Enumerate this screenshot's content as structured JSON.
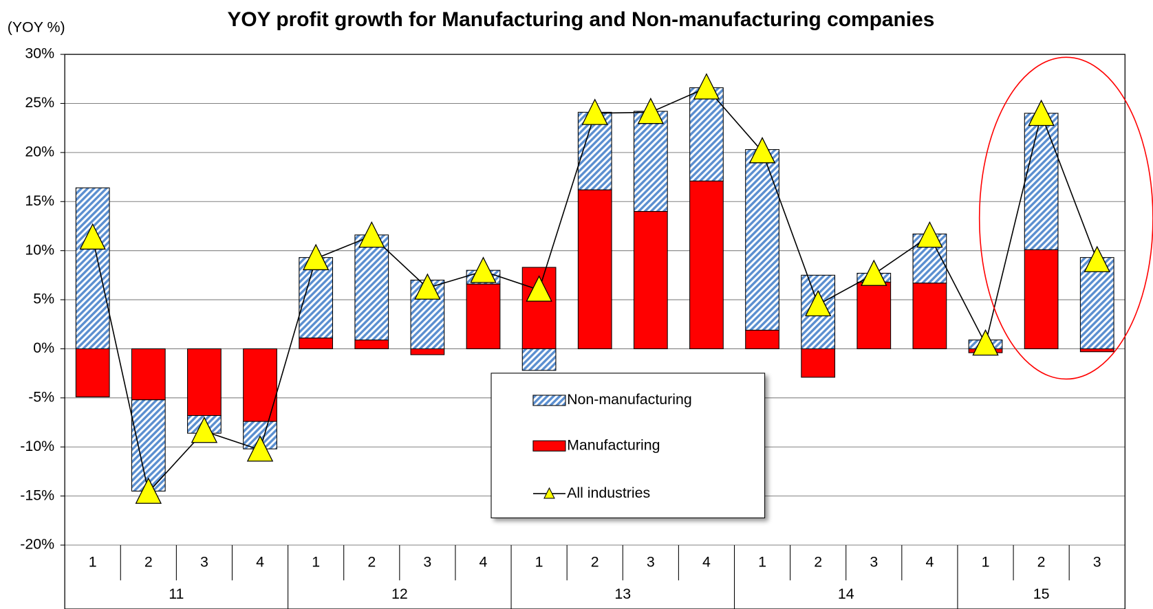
{
  "chart_data": {
    "type": "bar",
    "stacked": true,
    "title": "YOY profit growth for Manufacturing and Non-manufacturing companies",
    "y_label": "(YOY %)",
    "groups": [
      {
        "label": "11",
        "categories": [
          "1",
          "2",
          "3",
          "4"
        ]
      },
      {
        "label": "12",
        "categories": [
          "1",
          "2",
          "3",
          "4"
        ]
      },
      {
        "label": "13",
        "categories": [
          "1",
          "2",
          "3",
          "4"
        ]
      },
      {
        "label": "14",
        "categories": [
          "1",
          "2",
          "3",
          "4"
        ]
      },
      {
        "label": "15",
        "categories": [
          "1",
          "2",
          "3"
        ]
      }
    ],
    "series": [
      {
        "name": "Non-manufacturing",
        "type": "bar",
        "color": "#5b8fd0",
        "pattern": "hatch",
        "values": [
          16.4,
          -9.3,
          -1.8,
          -2.8,
          8.2,
          10.7,
          7.0,
          1.4,
          -2.2,
          7.9,
          10.2,
          9.5,
          18.4,
          7.5,
          0.9,
          5.0,
          0.9,
          13.9,
          9.3
        ]
      },
      {
        "name": "Manufacturing",
        "type": "bar",
        "color": "#ff0000",
        "values": [
          -4.9,
          -5.2,
          -6.8,
          -7.4,
          1.1,
          0.9,
          -0.6,
          6.6,
          8.3,
          16.2,
          14.0,
          17.1,
          1.9,
          -2.9,
          6.8,
          6.7,
          -0.4,
          10.1,
          -0.3
        ]
      },
      {
        "name": "All industries",
        "type": "line",
        "color": "#000000",
        "marker_color": "#ffff00",
        "values": [
          11.3,
          -14.6,
          -8.4,
          -10.3,
          9.2,
          11.5,
          6.2,
          7.9,
          6.0,
          24.0,
          24.1,
          26.6,
          20.1,
          4.5,
          7.6,
          11.5,
          0.5,
          23.9,
          9.0
        ]
      }
    ],
    "ylim": [
      -20,
      30
    ],
    "yticks": [
      {
        "value": -20,
        "label": "-20%"
      },
      {
        "value": -15,
        "label": "-15%"
      },
      {
        "value": -10,
        "label": "-10%"
      },
      {
        "value": -5,
        "label": "-5%"
      },
      {
        "value": 0,
        "label": "0%"
      },
      {
        "value": 5,
        "label": "5%"
      },
      {
        "value": 10,
        "label": "10%"
      },
      {
        "value": 15,
        "label": "15%"
      },
      {
        "value": 20,
        "label": "20%"
      },
      {
        "value": 25,
        "label": "25%"
      },
      {
        "value": 30,
        "label": "30%"
      }
    ],
    "grid": true,
    "legend_position": "bottom-center"
  }
}
